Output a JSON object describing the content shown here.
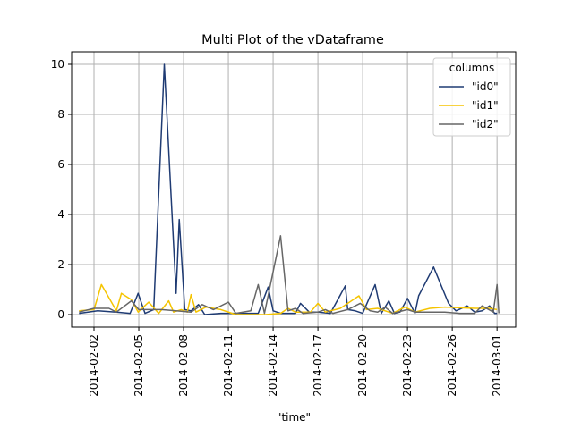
{
  "chart_data": {
    "type": "line",
    "title": "Multi Plot of the vDataframe",
    "xlabel": "\"time\"",
    "ylabel": "",
    "x_tick_labels": [
      "2014-02-02",
      "2014-02-05",
      "2014-02-08",
      "2014-02-11",
      "2014-02-14",
      "2014-02-17",
      "2014-02-20",
      "2014-02-23",
      "2014-02-26",
      "2014-03-01"
    ],
    "y_tick_labels": [
      "0",
      "2",
      "4",
      "6",
      "8",
      "10"
    ],
    "y_ticks": [
      0,
      2,
      4,
      6,
      8,
      10
    ],
    "xlim": [
      "2014-01-31T12:00",
      "2014-03-02T06:00"
    ],
    "ylim": [
      -0.5,
      10.5
    ],
    "grid": true,
    "legend": {
      "title": "columns",
      "placement": "top-right"
    },
    "series": [
      {
        "name": "\"id0\"",
        "color": "#1f3b73",
        "points": [
          [
            "2014-02-01T00:00",
            0.05
          ],
          [
            "2014-02-02T06:00",
            0.15
          ],
          [
            "2014-02-03T12:00",
            0.1
          ],
          [
            "2014-02-04T10:00",
            0.05
          ],
          [
            "2014-02-04T23:00",
            0.85
          ],
          [
            "2014-02-05T10:00",
            0.05
          ],
          [
            "2014-02-06T00:00",
            0.2
          ],
          [
            "2014-02-06T17:00",
            10.0
          ],
          [
            "2014-02-07T12:00",
            0.85
          ],
          [
            "2014-02-07T17:00",
            3.8
          ],
          [
            "2014-02-08T02:00",
            0.2
          ],
          [
            "2014-02-08T12:00",
            0.15
          ],
          [
            "2014-02-09T00:00",
            0.4
          ],
          [
            "2014-02-09T10:00",
            0.0
          ],
          [
            "2014-02-10T12:00",
            0.05
          ],
          [
            "2014-02-11T12:00",
            0.05
          ],
          [
            "2014-02-13T00:00",
            0.05
          ],
          [
            "2014-02-13T16:00",
            1.1
          ],
          [
            "2014-02-14T00:00",
            0.15
          ],
          [
            "2014-02-14T12:00",
            0.05
          ],
          [
            "2014-02-15T12:00",
            0.05
          ],
          [
            "2014-02-15T20:00",
            0.45
          ],
          [
            "2014-02-16T10:00",
            0.1
          ],
          [
            "2014-02-17T00:00",
            0.1
          ],
          [
            "2014-02-17T20:00",
            0.05
          ],
          [
            "2014-02-18T20:00",
            1.15
          ],
          [
            "2014-02-19T00:00",
            0.2
          ],
          [
            "2014-02-19T12:00",
            0.15
          ],
          [
            "2014-02-20T00:00",
            0.05
          ],
          [
            "2014-02-20T20:00",
            1.2
          ],
          [
            "2014-02-21T06:00",
            0.05
          ],
          [
            "2014-02-21T18:00",
            0.55
          ],
          [
            "2014-02-22T03:00",
            0.05
          ],
          [
            "2014-02-22T12:00",
            0.1
          ],
          [
            "2014-02-23T00:00",
            0.65
          ],
          [
            "2014-02-23T12:00",
            0.05
          ],
          [
            "2014-02-23T18:00",
            0.75
          ],
          [
            "2014-02-24T18:00",
            1.9
          ],
          [
            "2014-02-25T18:00",
            0.45
          ],
          [
            "2014-02-26T06:00",
            0.15
          ],
          [
            "2014-02-27T00:00",
            0.35
          ],
          [
            "2014-02-27T12:00",
            0.1
          ],
          [
            "2014-02-28T00:00",
            0.15
          ],
          [
            "2014-02-28T12:00",
            0.35
          ],
          [
            "2014-02-28T20:00",
            0.05
          ],
          [
            "2014-03-01T00:00",
            0.05
          ]
        ]
      },
      {
        "name": "\"id1\"",
        "color": "#f5c400",
        "points": [
          [
            "2014-02-01T00:00",
            0.15
          ],
          [
            "2014-02-02T00:00",
            0.2
          ],
          [
            "2014-02-02T12:00",
            1.2
          ],
          [
            "2014-02-03T12:00",
            0.15
          ],
          [
            "2014-02-03T20:00",
            0.85
          ],
          [
            "2014-02-04T12:00",
            0.6
          ],
          [
            "2014-02-04T23:00",
            0.1
          ],
          [
            "2014-02-05T16:00",
            0.5
          ],
          [
            "2014-02-06T08:00",
            0.05
          ],
          [
            "2014-02-07T00:00",
            0.55
          ],
          [
            "2014-02-07T08:00",
            0.1
          ],
          [
            "2014-02-07T20:00",
            0.2
          ],
          [
            "2014-02-08T06:00",
            0.1
          ],
          [
            "2014-02-08T12:00",
            0.8
          ],
          [
            "2014-02-08T20:00",
            0.1
          ],
          [
            "2014-02-09T12:00",
            0.3
          ],
          [
            "2014-02-10T12:00",
            0.2
          ],
          [
            "2014-02-11T12:00",
            0.0
          ],
          [
            "2014-02-13T12:00",
            0.0
          ],
          [
            "2014-02-14T12:00",
            0.05
          ],
          [
            "2014-02-15T00:00",
            0.25
          ],
          [
            "2014-02-15T12:00",
            0.1
          ],
          [
            "2014-02-16T12:00",
            0.1
          ],
          [
            "2014-02-17T00:00",
            0.45
          ],
          [
            "2014-02-17T12:00",
            0.1
          ],
          [
            "2014-02-18T12:00",
            0.25
          ],
          [
            "2014-02-19T18:00",
            0.75
          ],
          [
            "2014-02-20T06:00",
            0.2
          ],
          [
            "2014-02-21T00:00",
            0.25
          ],
          [
            "2014-02-22T00:00",
            0.05
          ],
          [
            "2014-02-22T20:00",
            0.3
          ],
          [
            "2014-02-23T12:00",
            0.1
          ],
          [
            "2014-02-24T12:00",
            0.25
          ],
          [
            "2014-02-25T12:00",
            0.3
          ],
          [
            "2014-02-27T12:00",
            0.25
          ],
          [
            "2014-02-28T12:00",
            0.25
          ],
          [
            "2014-03-01T00:00",
            0.2
          ]
        ]
      },
      {
        "name": "\"id2\"",
        "color": "#666666",
        "points": [
          [
            "2014-02-01T00:00",
            0.1
          ],
          [
            "2014-02-02T00:00",
            0.25
          ],
          [
            "2014-02-03T00:00",
            0.25
          ],
          [
            "2014-02-03T12:00",
            0.1
          ],
          [
            "2014-02-04T12:00",
            0.55
          ],
          [
            "2014-02-05T00:00",
            0.2
          ],
          [
            "2014-02-05T12:00",
            0.2
          ],
          [
            "2014-02-06T12:00",
            0.2
          ],
          [
            "2014-02-07T12:00",
            0.15
          ],
          [
            "2014-02-08T12:00",
            0.1
          ],
          [
            "2014-02-09T06:00",
            0.4
          ],
          [
            "2014-02-10T00:00",
            0.2
          ],
          [
            "2014-02-11T00:00",
            0.5
          ],
          [
            "2014-02-11T12:00",
            0.05
          ],
          [
            "2014-02-12T12:00",
            0.15
          ],
          [
            "2014-02-13T00:00",
            1.2
          ],
          [
            "2014-02-13T10:00",
            0.05
          ],
          [
            "2014-02-14T12:00",
            3.15
          ],
          [
            "2014-02-15T00:00",
            0.15
          ],
          [
            "2014-02-15T12:00",
            0.25
          ],
          [
            "2014-02-16T00:00",
            0.05
          ],
          [
            "2014-02-17T00:00",
            0.1
          ],
          [
            "2014-02-17T12:00",
            0.2
          ],
          [
            "2014-02-18T00:00",
            0.05
          ],
          [
            "2014-02-19T00:00",
            0.2
          ],
          [
            "2014-02-19T20:00",
            0.45
          ],
          [
            "2014-02-20T12:00",
            0.15
          ],
          [
            "2014-02-21T00:00",
            0.1
          ],
          [
            "2014-02-21T12:00",
            0.3
          ],
          [
            "2014-02-22T00:00",
            0.05
          ],
          [
            "2014-02-23T00:00",
            0.2
          ],
          [
            "2014-02-23T12:00",
            0.1
          ],
          [
            "2014-02-24T12:00",
            0.1
          ],
          [
            "2014-02-25T12:00",
            0.1
          ],
          [
            "2014-02-26T12:00",
            0.05
          ],
          [
            "2014-02-27T12:00",
            0.05
          ],
          [
            "2014-02-28T00:00",
            0.35
          ],
          [
            "2014-02-28T18:00",
            0.1
          ],
          [
            "2014-03-01T00:00",
            1.2
          ],
          [
            "2014-03-01T03:00",
            0.05
          ]
        ]
      }
    ]
  }
}
